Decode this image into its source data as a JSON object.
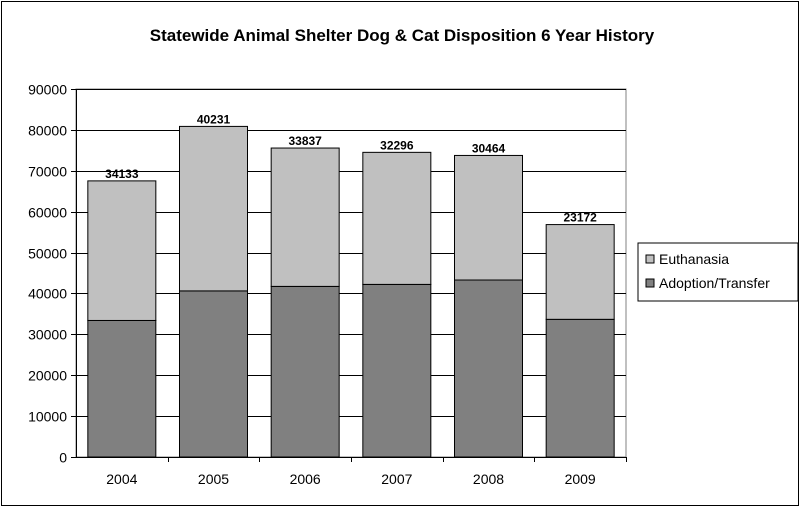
{
  "chart_data": {
    "type": "bar",
    "stacked": true,
    "title": "Statewide Animal Shelter Dog & Cat Disposition 6 Year History",
    "xlabel": "",
    "ylabel": "",
    "categories": [
      "2004",
      "2005",
      "2006",
      "2007",
      "2008",
      "2009"
    ],
    "ylim": [
      0,
      90000
    ],
    "yticks": [
      "0",
      "10000",
      "20000",
      "30000",
      "40000",
      "50000",
      "60000",
      "70000",
      "80000",
      "90000"
    ],
    "grid": true,
    "legend_position": "right",
    "series": [
      {
        "name": "Adoption/Transfer",
        "values": [
          33394,
          40621,
          41724,
          42213,
          43286,
          33670
        ],
        "color": "#808080"
      },
      {
        "name": "Euthanasia",
        "values": [
          34133,
          40231,
          33837,
          32296,
          30464,
          23172
        ],
        "color": "#c0c0c0"
      }
    ]
  }
}
